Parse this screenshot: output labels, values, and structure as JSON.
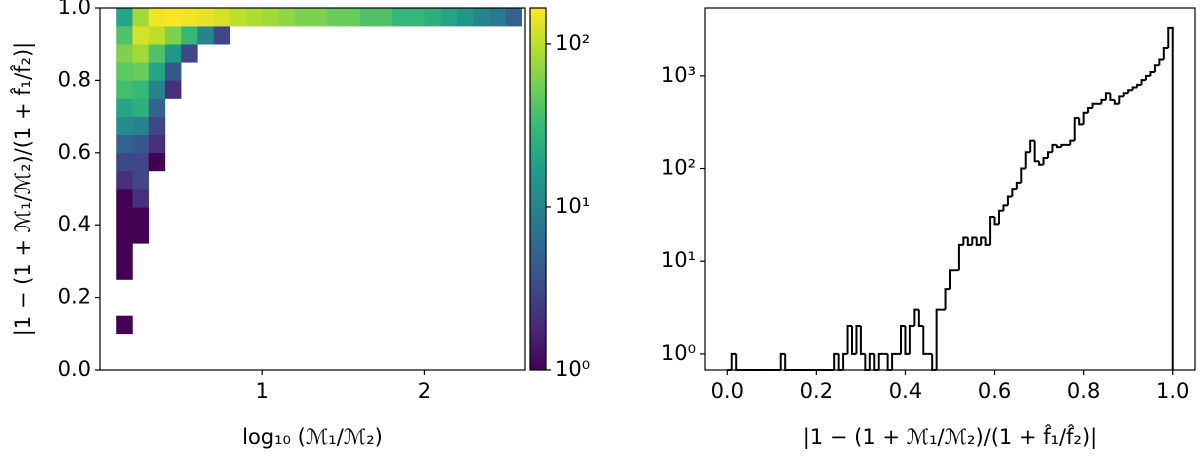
{
  "chart_data": [
    {
      "type": "heatmap",
      "xlabel": "log₁₀ (ℳ₁/ℳ₂)",
      "ylabel": "|1 − (1 + ℳ₁/ℳ₂)/(1 + f̂₁/f̂₂)|",
      "xlim": [
        0.0,
        2.62
      ],
      "ylim": [
        0.0,
        1.0
      ],
      "xticks": [
        1,
        2
      ],
      "yticks": [
        {
          "value": 0,
          "label": "0.0"
        },
        0.2,
        0.4,
        0.6,
        0.8,
        {
          "value": 1,
          "label": "1.0"
        }
      ],
      "colormap": "viridis",
      "colorbar": {
        "scale": "log",
        "clim": [
          1,
          166
        ],
        "ticks": [
          {
            "value": 1,
            "label": "10⁰"
          },
          {
            "value": 10,
            "label": "10¹"
          },
          {
            "value": 100,
            "label": "10²"
          }
        ]
      },
      "xbins": [
        0,
        0.1,
        0.2,
        0.3,
        0.4,
        0.5,
        0.6,
        0.7,
        0.8,
        0.9,
        1.0,
        1.1,
        1.2,
        1.3,
        1.4,
        1.5,
        1.6,
        1.7,
        1.8,
        1.9,
        2.0,
        2.1,
        2.2,
        2.3,
        2.4,
        2.5,
        2.6
      ],
      "ybins": [
        0,
        0.05,
        0.1,
        0.15,
        0.2,
        0.25,
        0.3,
        0.35,
        0.4,
        0.45,
        0.5,
        0.55,
        0.6,
        0.65,
        0.7,
        0.75,
        0.8,
        0.85,
        0.9,
        0.95,
        1.0
      ],
      "counts": [
        [
          null,
          null,
          null,
          null,
          null,
          null,
          null,
          null,
          null,
          null,
          null,
          null,
          null,
          null,
          null,
          null,
          null,
          null,
          null,
          null,
          null,
          null,
          null,
          null,
          null,
          null
        ],
        [
          null,
          null,
          null,
          null,
          null,
          null,
          null,
          null,
          null,
          null,
          null,
          null,
          null,
          null,
          null,
          null,
          null,
          null,
          null,
          null,
          null,
          null,
          null,
          null,
          null,
          null
        ],
        [
          null,
          1,
          null,
          null,
          null,
          null,
          null,
          null,
          null,
          null,
          null,
          null,
          null,
          null,
          null,
          null,
          null,
          null,
          null,
          null,
          null,
          null,
          null,
          null,
          null,
          null
        ],
        [
          null,
          null,
          null,
          null,
          null,
          null,
          null,
          null,
          null,
          null,
          null,
          null,
          null,
          null,
          null,
          null,
          null,
          null,
          null,
          null,
          null,
          null,
          null,
          null,
          null,
          null
        ],
        [
          null,
          null,
          null,
          null,
          null,
          null,
          null,
          null,
          null,
          null,
          null,
          null,
          null,
          null,
          null,
          null,
          null,
          null,
          null,
          null,
          null,
          null,
          null,
          null,
          null,
          null
        ],
        [
          null,
          1,
          null,
          null,
          null,
          null,
          null,
          null,
          null,
          null,
          null,
          null,
          null,
          null,
          null,
          null,
          null,
          null,
          null,
          null,
          null,
          null,
          null,
          null,
          null,
          null
        ],
        [
          null,
          1,
          null,
          null,
          null,
          null,
          null,
          null,
          null,
          null,
          null,
          null,
          null,
          null,
          null,
          null,
          null,
          null,
          null,
          null,
          null,
          null,
          null,
          null,
          null,
          null
        ],
        [
          null,
          1,
          1,
          null,
          null,
          null,
          null,
          null,
          null,
          null,
          null,
          null,
          null,
          null,
          null,
          null,
          null,
          null,
          null,
          null,
          null,
          null,
          null,
          null,
          null,
          null
        ],
        [
          null,
          1,
          1,
          null,
          null,
          null,
          null,
          null,
          null,
          null,
          null,
          null,
          null,
          null,
          null,
          null,
          null,
          null,
          null,
          null,
          null,
          null,
          null,
          null,
          null,
          null
        ],
        [
          null,
          1,
          2,
          null,
          null,
          null,
          null,
          null,
          null,
          null,
          null,
          null,
          null,
          null,
          null,
          null,
          null,
          null,
          null,
          null,
          null,
          null,
          null,
          null,
          null,
          null
        ],
        [
          null,
          2,
          3,
          null,
          null,
          null,
          null,
          null,
          null,
          null,
          null,
          null,
          null,
          null,
          null,
          null,
          null,
          null,
          null,
          null,
          null,
          null,
          null,
          null,
          null,
          null
        ],
        [
          null,
          3,
          3,
          1,
          null,
          null,
          null,
          null,
          null,
          null,
          null,
          null,
          null,
          null,
          null,
          null,
          null,
          null,
          null,
          null,
          null,
          null,
          null,
          null,
          null,
          null
        ],
        [
          null,
          5,
          4,
          2,
          null,
          null,
          null,
          null,
          null,
          null,
          null,
          null,
          null,
          null,
          null,
          null,
          null,
          null,
          null,
          null,
          null,
          null,
          null,
          null,
          null,
          null
        ],
        [
          null,
          12,
          10,
          3,
          null,
          null,
          null,
          null,
          null,
          null,
          null,
          null,
          null,
          null,
          null,
          null,
          null,
          null,
          null,
          null,
          null,
          null,
          null,
          null,
          null,
          null
        ],
        [
          null,
          20,
          25,
          5,
          null,
          null,
          null,
          null,
          null,
          null,
          null,
          null,
          null,
          null,
          null,
          null,
          null,
          null,
          null,
          null,
          null,
          null,
          null,
          null,
          null,
          null
        ],
        [
          null,
          35,
          30,
          10,
          2,
          null,
          null,
          null,
          null,
          null,
          null,
          null,
          null,
          null,
          null,
          null,
          null,
          null,
          null,
          null,
          null,
          null,
          null,
          null,
          null,
          null
        ],
        [
          null,
          45,
          50,
          20,
          4,
          null,
          null,
          null,
          null,
          null,
          null,
          null,
          null,
          null,
          null,
          null,
          null,
          null,
          null,
          null,
          null,
          null,
          null,
          null,
          null,
          null
        ],
        [
          null,
          60,
          80,
          40,
          15,
          3,
          null,
          null,
          null,
          null,
          null,
          null,
          null,
          null,
          null,
          null,
          null,
          null,
          null,
          null,
          null,
          null,
          null,
          null,
          null,
          null
        ],
        [
          null,
          40,
          120,
          100,
          60,
          30,
          10,
          3,
          null,
          null,
          null,
          null,
          null,
          null,
          null,
          null,
          null,
          null,
          null,
          null,
          null,
          null,
          null,
          null,
          null,
          null
        ],
        [
          null,
          20,
          80,
          150,
          160,
          150,
          140,
          120,
          100,
          90,
          80,
          70,
          60,
          60,
          50,
          50,
          40,
          40,
          30,
          30,
          25,
          20,
          15,
          10,
          8,
          5
        ]
      ]
    },
    {
      "type": "histogram",
      "xlabel": "|1 − (1 + ℳ₁/ℳ₂)/(1 + f̂₁/f̂₂)|",
      "xlim": [
        -0.05,
        1.05
      ],
      "ylim": [
        0.67,
        5400
      ],
      "yscale": "log",
      "color": "#000000",
      "xticks": [
        {
          "value": 0,
          "label": "0.0"
        },
        0.2,
        0.4,
        0.6,
        0.8,
        {
          "value": 1,
          "label": "1.0"
        }
      ],
      "yticks": [
        {
          "value": 1,
          "label": "10⁰"
        },
        {
          "value": 10,
          "label": "10¹"
        },
        {
          "value": 100,
          "label": "10²"
        },
        {
          "value": 1000,
          "label": "10³"
        }
      ],
      "bins": [
        0,
        0.01,
        0.02,
        0.03,
        0.04,
        0.05,
        0.06,
        0.07,
        0.08,
        0.09,
        0.1,
        0.11,
        0.12,
        0.13,
        0.14,
        0.15,
        0.16,
        0.17,
        0.18,
        0.19,
        0.2,
        0.21,
        0.22,
        0.23,
        0.24,
        0.25,
        0.26,
        0.27,
        0.28,
        0.29,
        0.3,
        0.31,
        0.32,
        0.33,
        0.34,
        0.35,
        0.36,
        0.37,
        0.38,
        0.39,
        0.4,
        0.41,
        0.42,
        0.43,
        0.44,
        0.45,
        0.46,
        0.47,
        0.48,
        0.49,
        0.5,
        0.51,
        0.52,
        0.53,
        0.54,
        0.55,
        0.56,
        0.57,
        0.58,
        0.59,
        0.6,
        0.61,
        0.62,
        0.63,
        0.64,
        0.65,
        0.66,
        0.67,
        0.68,
        0.69,
        0.7,
        0.71,
        0.72,
        0.73,
        0.74,
        0.75,
        0.76,
        0.77,
        0.78,
        0.79,
        0.8,
        0.81,
        0.82,
        0.83,
        0.84,
        0.85,
        0.86,
        0.87,
        0.88,
        0.89,
        0.9,
        0.91,
        0.92,
        0.93,
        0.94,
        0.95,
        0.96,
        0.97,
        0.98,
        0.99,
        1.0
      ],
      "counts": [
        0,
        1,
        0,
        0,
        0,
        0,
        0,
        0,
        0,
        0,
        0,
        0,
        1,
        0,
        0,
        0,
        0,
        0,
        0,
        0,
        0,
        0,
        0,
        0,
        1,
        0,
        1,
        2,
        1,
        2,
        1,
        0,
        1,
        0,
        1,
        1,
        0,
        1,
        1,
        2,
        1,
        2,
        3,
        2,
        1,
        1,
        0,
        3,
        3,
        5,
        8,
        8,
        15,
        18,
        15,
        18,
        15,
        18,
        15,
        30,
        25,
        35,
        40,
        50,
        60,
        70,
        100,
        150,
        200,
        120,
        110,
        130,
        150,
        180,
        170,
        180,
        180,
        200,
        350,
        300,
        400,
        450,
        500,
        500,
        550,
        650,
        550,
        500,
        600,
        650,
        700,
        750,
        800,
        900,
        1000,
        1100,
        1300,
        1500,
        2000,
        3300
      ]
    }
  ]
}
